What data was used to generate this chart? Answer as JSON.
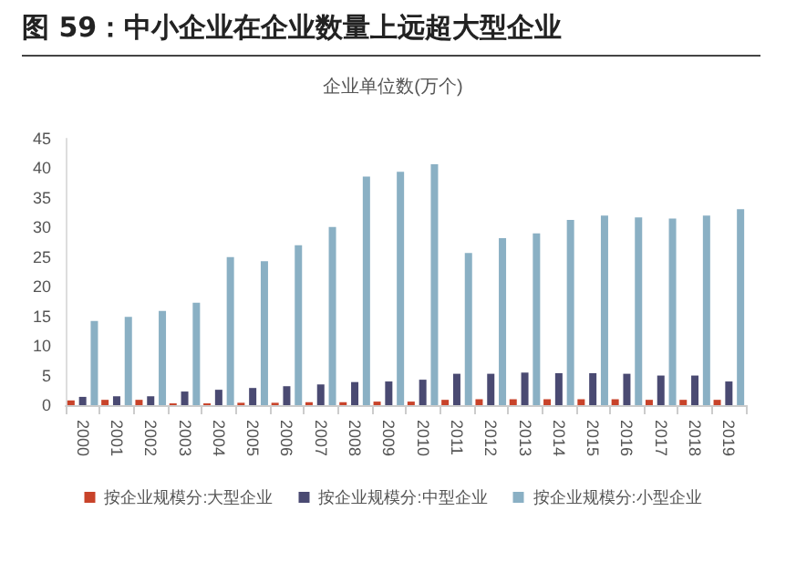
{
  "chart_data": {
    "type": "bar",
    "title": "图 59：中小企业在企业数量上远超大型企业",
    "subtitle": "企业单位数(万个)",
    "categories": [
      "2000",
      "2001",
      "2002",
      "2003",
      "2004",
      "2005",
      "2006",
      "2007",
      "2008",
      "2009",
      "2010",
      "2011",
      "2012",
      "2013",
      "2014",
      "2015",
      "2016",
      "2017",
      "2018",
      "2019"
    ],
    "series": [
      {
        "name": "按企业规模分:大型企业",
        "color": "#c8432a",
        "values": [
          0.8,
          0.9,
          0.9,
          0.3,
          0.3,
          0.4,
          0.4,
          0.5,
          0.5,
          0.6,
          0.6,
          0.9,
          1.0,
          1.0,
          1.0,
          1.0,
          1.0,
          0.9,
          0.9,
          0.9
        ]
      },
      {
        "name": "按企业规模分:中型企业",
        "color": "#4a4a72",
        "values": [
          1.4,
          1.5,
          1.5,
          2.3,
          2.6,
          2.9,
          3.2,
          3.5,
          3.9,
          4.0,
          4.3,
          5.3,
          5.3,
          5.5,
          5.4,
          5.4,
          5.3,
          5.0,
          5.0,
          4.0
        ]
      },
      {
        "name": "按企业规模分:小型企业",
        "color": "#8ab0c4",
        "values": [
          14.2,
          14.9,
          15.9,
          17.3,
          25,
          24.3,
          27,
          30.1,
          38.6,
          39.4,
          40.7,
          25.7,
          28.2,
          29,
          31.3,
          32,
          31.7,
          31.5,
          32,
          33.1
        ]
      }
    ],
    "ylim": [
      0,
      45
    ],
    "yticks": [
      0,
      5,
      10,
      15,
      20,
      25,
      30,
      35,
      40,
      45
    ],
    "grid": false,
    "legend": "bottom"
  }
}
